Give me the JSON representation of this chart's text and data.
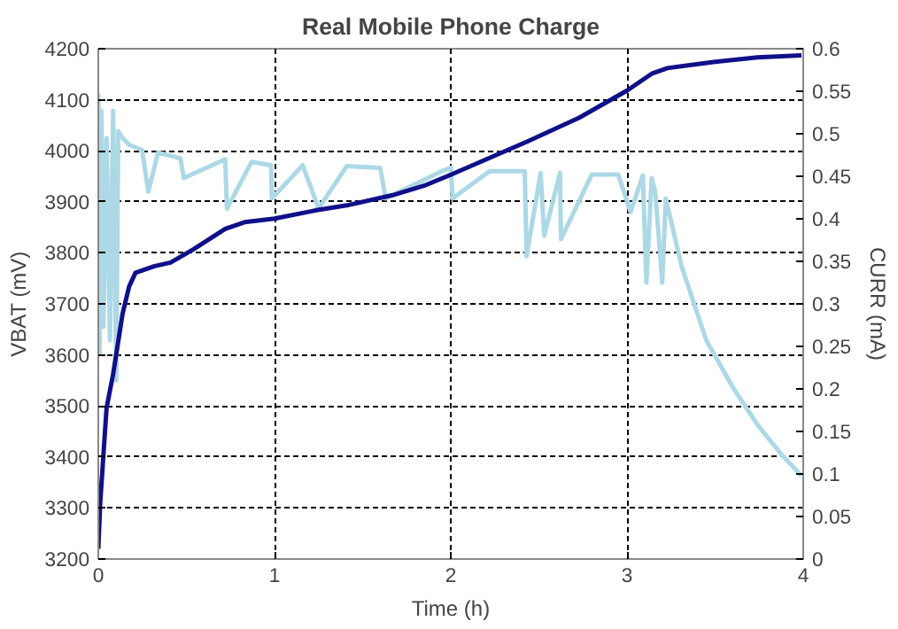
{
  "chart_data": {
    "type": "line",
    "title": "Real Mobile Phone Charge",
    "xlabel": "Time (h)",
    "ylabel": "VBAT (mV)",
    "y2label": "CURR (mA)",
    "xlim": [
      0,
      4
    ],
    "xticks": [
      0,
      1,
      2,
      3,
      4
    ],
    "ylim": [
      3200,
      4200
    ],
    "yticks": [
      3200,
      3300,
      3400,
      3500,
      3600,
      3700,
      3800,
      3900,
      4000,
      4100,
      4200
    ],
    "y2lim": [
      0,
      0.6
    ],
    "y2ticks": [
      0,
      0.05,
      0.1,
      0.15,
      0.2,
      0.25,
      0.3,
      0.35,
      0.4,
      0.45,
      0.5,
      0.55,
      0.6
    ],
    "grid": true,
    "line_style": "solid",
    "series": [
      {
        "color": "#add8e6",
        "axis": "y2",
        "x": [
          0,
          0.007,
          0.018,
          0.029,
          0.047,
          0.066,
          0.084,
          0.102,
          0.113,
          0.138,
          0.175,
          0.248,
          0.284,
          0.339,
          0.466,
          0.485,
          0.72,
          0.73,
          0.87,
          0.98,
          0.985,
          1.16,
          1.25,
          1.41,
          1.6,
          1.63,
          1.96,
          2.0,
          2.01,
          2.22,
          2.42,
          2.43,
          2.51,
          2.53,
          2.62,
          2.625,
          2.8,
          2.95,
          3.02,
          3.09,
          3.11,
          3.14,
          3.16,
          3.2,
          3.22,
          3.31,
          3.45,
          3.6,
          3.74,
          3.88,
          3.99
        ],
        "values": [
          0.547,
          0.241,
          0.527,
          0.273,
          0.495,
          0.257,
          0.527,
          0.21,
          0.503,
          0.495,
          0.487,
          0.481,
          0.432,
          0.478,
          0.471,
          0.448,
          0.47,
          0.412,
          0.467,
          0.463,
          0.424,
          0.463,
          0.412,
          0.462,
          0.46,
          0.424,
          0.457,
          0.46,
          0.424,
          0.456,
          0.456,
          0.356,
          0.454,
          0.38,
          0.454,
          0.376,
          0.452,
          0.452,
          0.408,
          0.451,
          0.325,
          0.448,
          0.432,
          0.325,
          0.424,
          0.344,
          0.257,
          0.202,
          0.158,
          0.122,
          0.098
        ]
      },
      {
        "color": "#10108a",
        "x": [
          0,
          0.011,
          0.047,
          0.084,
          0.138,
          0.175,
          0.211,
          0.32,
          0.41,
          0.54,
          0.72,
          0.83,
          1.0,
          1.23,
          1.41,
          1.67,
          1.86,
          2.0,
          2.22,
          2.44,
          2.73,
          3.0,
          3.14,
          3.23,
          3.49,
          3.74,
          3.99
        ],
        "values": [
          3220,
          3311,
          3496,
          3562,
          3681,
          3734,
          3761,
          3774,
          3781,
          3807,
          3847,
          3860,
          3867,
          3883,
          3893,
          3913,
          3933,
          3953,
          3986,
          4019,
          4065,
          4118,
          4151,
          4162,
          4174,
          4183,
          4187
        ]
      }
    ]
  }
}
